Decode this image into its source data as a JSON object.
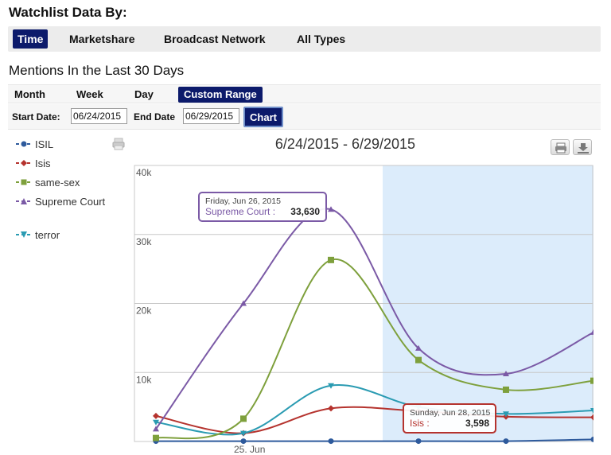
{
  "header": {
    "title": "Watchlist Data By:"
  },
  "tabs": [
    {
      "label": "Time",
      "active": true
    },
    {
      "label": "Marketshare",
      "active": false
    },
    {
      "label": "Broadcast Network",
      "active": false
    },
    {
      "label": "All Types",
      "active": false
    }
  ],
  "section": {
    "title": "Mentions In the Last 30 Days"
  },
  "range_tabs": [
    {
      "label": "Month",
      "active": false
    },
    {
      "label": "Week",
      "active": false
    },
    {
      "label": "Day",
      "active": false
    },
    {
      "label": "Custom Range",
      "active": true
    }
  ],
  "dates": {
    "start_label": "Start Date:",
    "start_value": "06/24/2015",
    "end_label": "End Date",
    "end_value": "06/29/2015",
    "chart_button": "Chart"
  },
  "icons": {
    "print": "print-icon",
    "download": "download-icon",
    "print_small": "print-small-icon"
  },
  "colors": {
    "accent": "#0c1a6b",
    "highlight_band": "#dcecfb",
    "ISIL": "#2e5a9c",
    "Isis": "#b5332e",
    "same-sex": "#7ea03c",
    "Supreme Court": "#7b5aa6",
    "terror": "#2a9bb2"
  },
  "chart_data": {
    "type": "line",
    "title": "6/24/2015 - 6/29/2015",
    "x": [
      "2015-06-24",
      "2015-06-25",
      "2015-06-26",
      "2015-06-27",
      "2015-06-28",
      "2015-06-29"
    ],
    "x_tick_labels": [
      "25. Jun"
    ],
    "ylim": [
      0,
      40000
    ],
    "y_ticks": [
      "10k",
      "20k",
      "30k",
      "40k"
    ],
    "grid": true,
    "legend_position": "left",
    "highlight_range": [
      "2015-06-27",
      "2015-06-29"
    ],
    "series": [
      {
        "name": "ISIL",
        "marker": "circle",
        "values": [
          50,
          50,
          50,
          50,
          50,
          300
        ]
      },
      {
        "name": "Isis",
        "marker": "diamond",
        "values": [
          3700,
          1200,
          4800,
          4400,
          3598,
          3500
        ]
      },
      {
        "name": "same-sex",
        "marker": "square",
        "values": [
          500,
          3300,
          26300,
          11800,
          7500,
          8800
        ]
      },
      {
        "name": "Supreme Court",
        "marker": "triangle",
        "values": [
          1800,
          20000,
          33630,
          13500,
          9800,
          15800
        ]
      },
      {
        "name": "terror",
        "marker": "triangle-down",
        "values": [
          2800,
          1200,
          8100,
          5000,
          4000,
          4500
        ]
      }
    ],
    "tooltips": [
      {
        "date_label": "Friday, Jun 26, 2015",
        "series": "Supreme Court",
        "value_label": "33,630"
      },
      {
        "date_label": "Sunday, Jun 28, 2015",
        "series": "Isis",
        "value_label": "3,598"
      }
    ]
  }
}
